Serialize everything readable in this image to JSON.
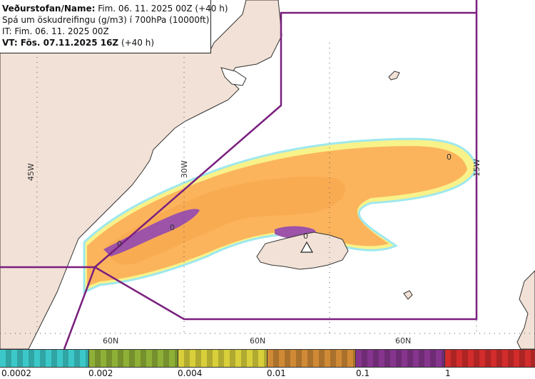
{
  "header": {
    "line1_bold": "Veðurstofan/Name:",
    "line1_rest": " Fim. 06. 11. 2025 00Z (+40 h)",
    "line2": "Spá um öskudreifingu (g/m3) í 700hPa (10000ft)",
    "line3": "IT: Fim. 06. 11. 2025 00Z",
    "line4_bold": "VT: Fös. 07.11.2025 16Z",
    "line4_rest": " (+40 h)"
  },
  "map": {
    "lon_labels": [
      "45W",
      "30W",
      "15W"
    ],
    "lat_labels": [
      "60N",
      "60N",
      "60N"
    ],
    "contour_labels": [
      "0",
      "0",
      "0",
      "0"
    ],
    "colors": {
      "land": "#f2e1d6",
      "coast": "#333333",
      "fir_boundary": "#7a1f7f",
      "ash_low": "#fbb45c",
      "ash_mid": "#f7a44a",
      "ash_high": "#9c53a8",
      "fringe_cyan": "#9ee8ee",
      "fringe_yellow": "#f8f28a"
    },
    "volcano_icon": "volcano-triangle-icon"
  },
  "legend": {
    "labels": [
      "0.0002",
      "0.002",
      "0.004",
      "0.01",
      "0.1",
      "1"
    ],
    "colors": [
      "#3cc8c8",
      "#8fb037",
      "#d8cf3a",
      "#d08a36",
      "#86358e",
      "#d22c2c"
    ]
  }
}
